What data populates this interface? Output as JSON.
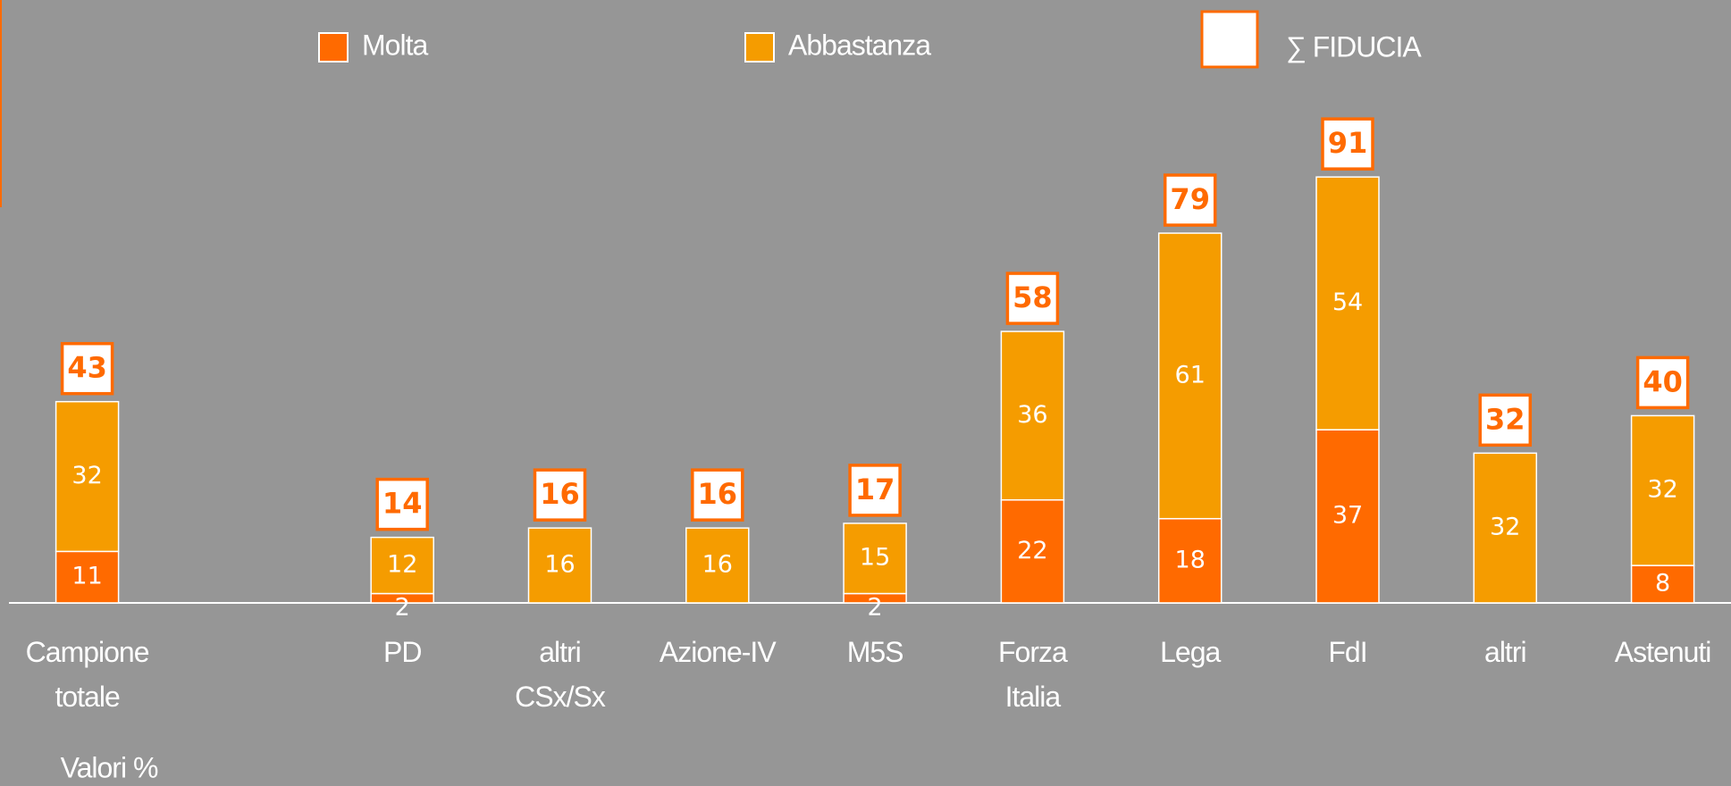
{
  "chart_data": {
    "type": "stacked-bar",
    "categories": [
      "Campione totale",
      null,
      "PD",
      "altri CSx/Sx",
      "Azione-IV",
      "M5S",
      "Forza Italia",
      "Lega",
      "FdI",
      "altri",
      "Astenuti"
    ],
    "series": [
      {
        "name": "Molta",
        "color": "#ff6a00",
        "values": [
          11,
          null,
          2,
          null,
          null,
          2,
          22,
          18,
          37,
          null,
          8
        ]
      },
      {
        "name": "Abbastanza",
        "color": "#f59c00",
        "values": [
          32,
          null,
          12,
          16,
          16,
          15,
          36,
          61,
          54,
          32,
          32
        ]
      }
    ],
    "totals": {
      "name": "∑ FIDUCIA",
      "color": "#ff6a00",
      "values": [
        43,
        null,
        14,
        16,
        16,
        17,
        58,
        79,
        91,
        32,
        40
      ]
    },
    "note": "Valori %"
  }
}
